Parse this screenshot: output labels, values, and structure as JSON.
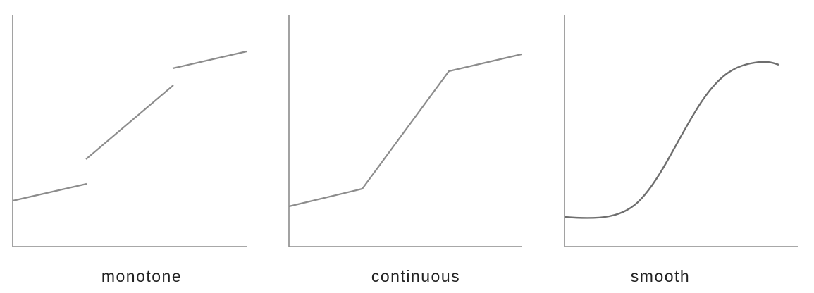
{
  "panels": [
    {
      "id": "monotone",
      "label": "monotone"
    },
    {
      "id": "continuous",
      "label": "continuous"
    },
    {
      "id": "smooth",
      "label": "smooth"
    }
  ],
  "colors": {
    "axis": "#8c8c8c",
    "line": "#8c8c8c",
    "smooth_line": "#6e6e6e",
    "text": "#222222"
  }
}
